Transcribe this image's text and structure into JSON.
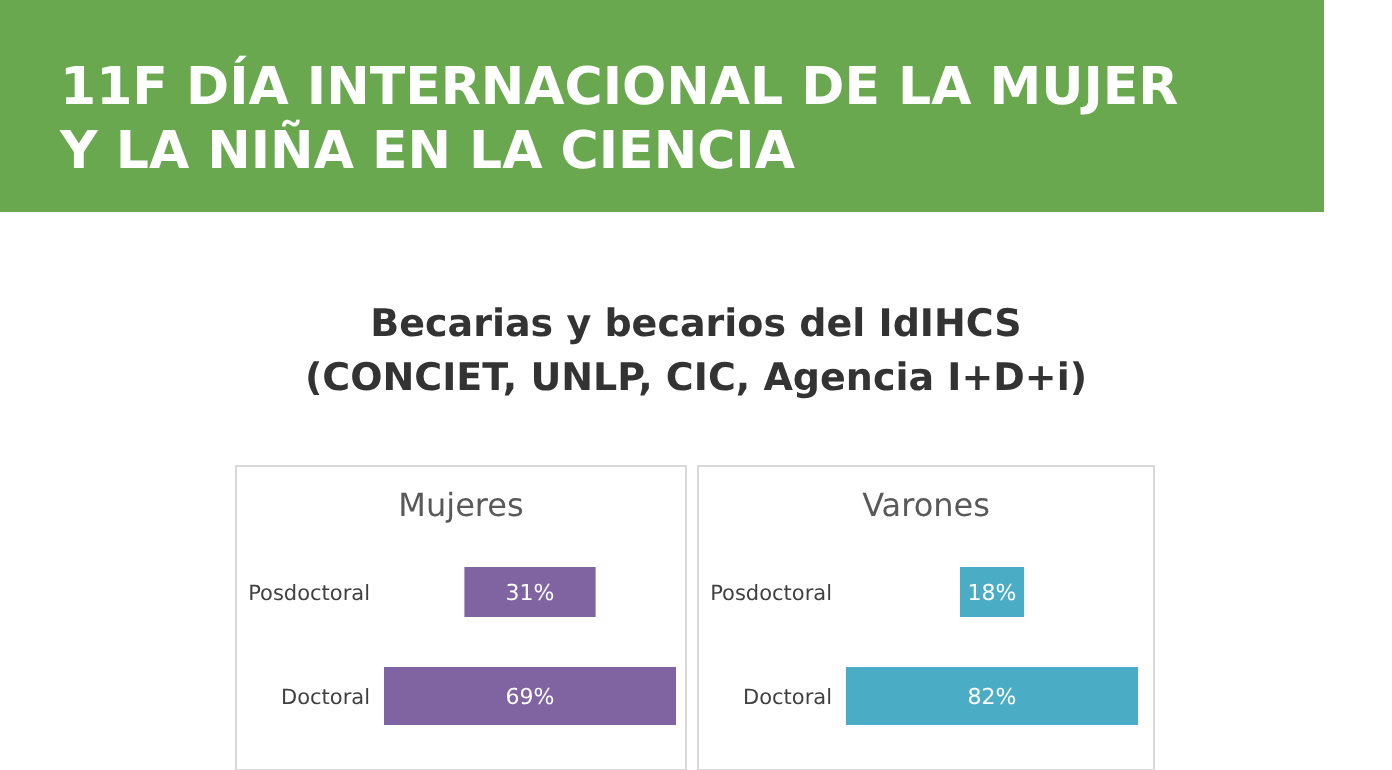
{
  "chart_data": [
    {
      "type": "other",
      "title": "Mujeres",
      "annotations": [
        "11F DÍA INTERNACIONAL DE LA MUJER\nY LA NIÑA EN LA CIENCIA",
        "Becarias y becarios del IdIHCS\n(CONCIET, UNLP, CIC, Agencia I+D+i)"
      ],
      "categories": [
        "Posdoctoral",
        "Doctoral"
      ],
      "values": [
        31,
        69
      ],
      "value_labels": [
        "31%",
        "69%"
      ],
      "color": "#8064a2"
    },
    {
      "type": "other",
      "title": "Varones",
      "categories": [
        "Posdoctoral",
        "Doctoral"
      ],
      "values": [
        18,
        82
      ],
      "value_labels": [
        "18%",
        "82%"
      ],
      "color": "#4bacc6"
    }
  ]
}
